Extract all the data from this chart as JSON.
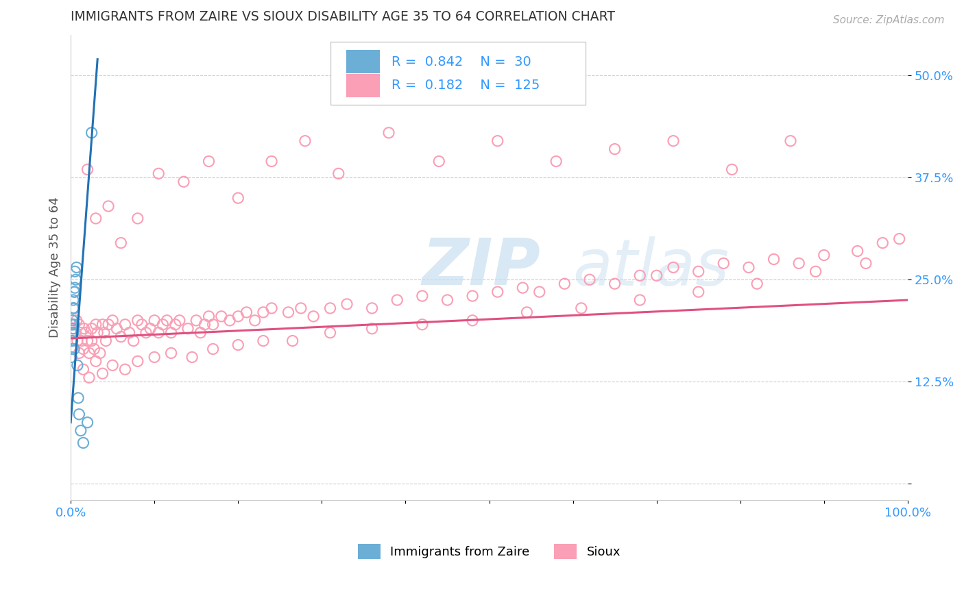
{
  "title": "IMMIGRANTS FROM ZAIRE VS SIOUX DISABILITY AGE 35 TO 64 CORRELATION CHART",
  "source": "Source: ZipAtlas.com",
  "ylabel": "Disability Age 35 to 64",
  "xlim": [
    0.0,
    1.0
  ],
  "ylim": [
    -0.02,
    0.55
  ],
  "x_ticks": [
    0.0,
    0.1,
    0.2,
    0.3,
    0.4,
    0.5,
    0.6,
    0.7,
    0.8,
    0.9,
    1.0
  ],
  "x_tick_labels": [
    "0.0%",
    "",
    "",
    "",
    "",
    "",
    "",
    "",
    "",
    "",
    "100.0%"
  ],
  "y_ticks": [
    0.0,
    0.125,
    0.25,
    0.375,
    0.5
  ],
  "y_tick_labels": [
    "",
    "12.5%",
    "25.0%",
    "37.5%",
    "50.0%"
  ],
  "legend_label_1": "Immigrants from Zaire",
  "legend_label_2": "Sioux",
  "R1": "0.842",
  "N1": "30",
  "R2": "0.182",
  "N2": "125",
  "color1": "#6baed6",
  "color2": "#fa9fb5",
  "trendline1_color": "#2171b5",
  "trendline2_color": "#e05080",
  "watermark_zip": "ZIP",
  "watermark_atlas": "atlas",
  "background_color": "#ffffff",
  "trendline1_x": [
    0.0,
    0.032
  ],
  "trendline1_y": [
    0.075,
    0.52
  ],
  "trendline2_x": [
    0.0,
    1.0
  ],
  "trendline2_y": [
    0.178,
    0.225
  ],
  "zaire_x": [
    0.001,
    0.001,
    0.001,
    0.001,
    0.001,
    0.002,
    0.002,
    0.002,
    0.002,
    0.003,
    0.003,
    0.003,
    0.003,
    0.003,
    0.004,
    0.004,
    0.004,
    0.004,
    0.005,
    0.005,
    0.005,
    0.006,
    0.007,
    0.008,
    0.009,
    0.01,
    0.012,
    0.015,
    0.02,
    0.025
  ],
  "zaire_y": [
    0.185,
    0.175,
    0.165,
    0.155,
    0.195,
    0.195,
    0.185,
    0.175,
    0.2,
    0.19,
    0.185,
    0.215,
    0.225,
    0.215,
    0.235,
    0.215,
    0.195,
    0.165,
    0.24,
    0.235,
    0.26,
    0.25,
    0.265,
    0.145,
    0.105,
    0.085,
    0.065,
    0.05,
    0.075,
    0.43
  ],
  "sioux_x": [
    0.003,
    0.005,
    0.007,
    0.008,
    0.01,
    0.01,
    0.012,
    0.013,
    0.015,
    0.016,
    0.018,
    0.02,
    0.022,
    0.025,
    0.025,
    0.028,
    0.03,
    0.032,
    0.035,
    0.038,
    0.04,
    0.042,
    0.045,
    0.05,
    0.055,
    0.06,
    0.065,
    0.07,
    0.075,
    0.08,
    0.085,
    0.09,
    0.095,
    0.1,
    0.105,
    0.11,
    0.115,
    0.12,
    0.125,
    0.13,
    0.14,
    0.15,
    0.155,
    0.16,
    0.165,
    0.17,
    0.18,
    0.19,
    0.2,
    0.21,
    0.22,
    0.23,
    0.24,
    0.26,
    0.275,
    0.29,
    0.31,
    0.33,
    0.36,
    0.39,
    0.42,
    0.45,
    0.48,
    0.51,
    0.54,
    0.56,
    0.59,
    0.62,
    0.65,
    0.68,
    0.7,
    0.72,
    0.75,
    0.78,
    0.81,
    0.84,
    0.87,
    0.9,
    0.94,
    0.97,
    0.99,
    0.015,
    0.022,
    0.03,
    0.038,
    0.05,
    0.065,
    0.08,
    0.1,
    0.12,
    0.145,
    0.17,
    0.2,
    0.23,
    0.265,
    0.31,
    0.36,
    0.42,
    0.48,
    0.545,
    0.61,
    0.68,
    0.75,
    0.82,
    0.89,
    0.95,
    0.02,
    0.03,
    0.045,
    0.06,
    0.08,
    0.105,
    0.135,
    0.165,
    0.2,
    0.24,
    0.28,
    0.32,
    0.38,
    0.44,
    0.51,
    0.58,
    0.65,
    0.72,
    0.79,
    0.86
  ],
  "sioux_y": [
    0.19,
    0.185,
    0.2,
    0.175,
    0.16,
    0.195,
    0.185,
    0.175,
    0.165,
    0.19,
    0.185,
    0.175,
    0.16,
    0.19,
    0.175,
    0.165,
    0.195,
    0.185,
    0.16,
    0.195,
    0.185,
    0.175,
    0.195,
    0.2,
    0.19,
    0.18,
    0.195,
    0.185,
    0.175,
    0.2,
    0.195,
    0.185,
    0.19,
    0.2,
    0.185,
    0.195,
    0.2,
    0.185,
    0.195,
    0.2,
    0.19,
    0.2,
    0.185,
    0.195,
    0.205,
    0.195,
    0.205,
    0.2,
    0.205,
    0.21,
    0.2,
    0.21,
    0.215,
    0.21,
    0.215,
    0.205,
    0.215,
    0.22,
    0.215,
    0.225,
    0.23,
    0.225,
    0.23,
    0.235,
    0.24,
    0.235,
    0.245,
    0.25,
    0.245,
    0.255,
    0.255,
    0.265,
    0.26,
    0.27,
    0.265,
    0.275,
    0.27,
    0.28,
    0.285,
    0.295,
    0.3,
    0.14,
    0.13,
    0.15,
    0.135,
    0.145,
    0.14,
    0.15,
    0.155,
    0.16,
    0.155,
    0.165,
    0.17,
    0.175,
    0.175,
    0.185,
    0.19,
    0.195,
    0.2,
    0.21,
    0.215,
    0.225,
    0.235,
    0.245,
    0.26,
    0.27,
    0.385,
    0.325,
    0.34,
    0.295,
    0.325,
    0.38,
    0.37,
    0.395,
    0.35,
    0.395,
    0.42,
    0.38,
    0.43,
    0.395,
    0.42,
    0.395,
    0.41,
    0.42,
    0.385,
    0.42
  ]
}
